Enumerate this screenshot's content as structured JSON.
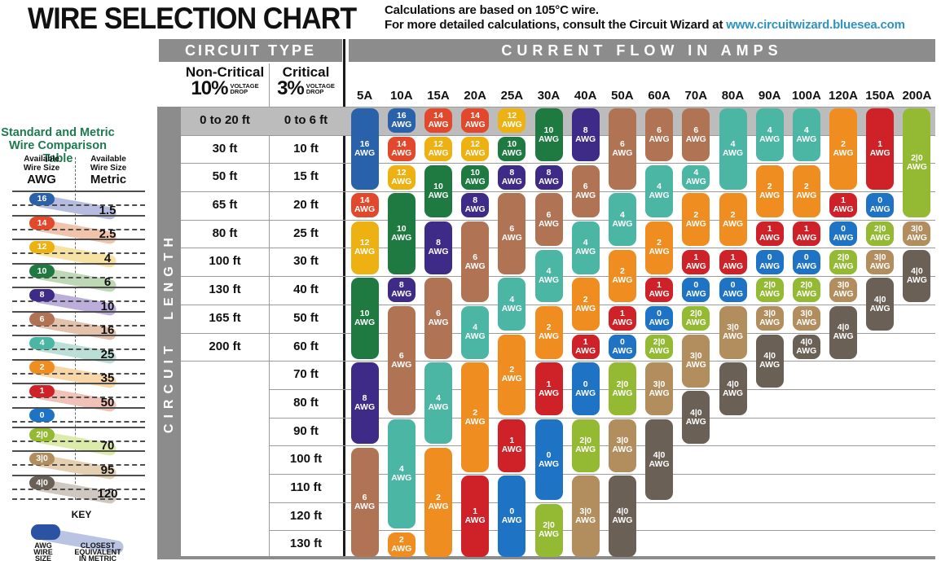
{
  "header": {
    "title": "WIRE SELECTION CHART",
    "note_line1": "Calculations are based on 105°C wire.",
    "note_line2": "For more detailed calculations, consult the Circuit Wizard at ",
    "note_link": "www.circuitwizard.bluesea.com",
    "link_color": "#2e93c4"
  },
  "table_header": {
    "circuit_type": "CIRCUIT TYPE",
    "current_flow": "CURRENT FLOW IN AMPS",
    "circuit_length": "CIRCUIT LENGTH",
    "non_critical": {
      "name": "Non-Critical",
      "pct": "10%",
      "drop1": "VOLTAGE",
      "drop2": "DROP"
    },
    "critical": {
      "name": "Critical",
      "pct": "3%",
      "drop1": "VOLTAGE",
      "drop2": "DROP"
    }
  },
  "sidebar": {
    "title1": "Standard and Metric",
    "title2": "Wire Comparison Table",
    "title_color": "#1c7a4f",
    "left_header1": "Available",
    "left_header2": "Wire Size",
    "left_unit": "AWG",
    "right_header1": "Available",
    "right_header2": "Wire Size",
    "right_unit": "Metric",
    "items": [
      {
        "awg": "16",
        "metric": "1.5"
      },
      {
        "awg": "14",
        "metric": "2.5"
      },
      {
        "awg": "12",
        "metric": "4"
      },
      {
        "awg": "10",
        "metric": "6"
      },
      {
        "awg": "8",
        "metric": "10"
      },
      {
        "awg": "6",
        "metric": "16"
      },
      {
        "awg": "4",
        "metric": "25"
      },
      {
        "awg": "2",
        "metric": "35"
      },
      {
        "awg": "1",
        "metric": "50"
      },
      {
        "awg": "0",
        "metric": ""
      },
      {
        "awg": "2|0",
        "metric": "70"
      },
      {
        "awg": "3|0",
        "metric": "95"
      },
      {
        "awg": "4|0",
        "metric": "120"
      }
    ],
    "key": {
      "label": "KEY",
      "pill_color": "#2b52a3",
      "swoosh_color": "#b9c3e2",
      "left1": "AWG",
      "left2": "WIRE",
      "left3": "SIZE",
      "right1": "CLOSEST",
      "right2": "EQUIVALENT",
      "right3": "IN METRIC"
    }
  },
  "wire_colors": {
    "16": "#2a61ab",
    "14": "#e2492c",
    "12": "#edb111",
    "10": "#1e7a41",
    "8": "#3e2b87",
    "6": "#b07354",
    "4": "#4cb6a5",
    "2": "#ef8d20",
    "1": "#cf2128",
    "0": "#1e73c4",
    "2|0": "#94ba33",
    "3|0": "#b28d5e",
    "4|0": "#6b6056"
  },
  "wire_light_colors": {
    "16": "#b6bcdf",
    "14": "#f2c3ab",
    "12": "#f6e3a3",
    "10": "#bed7b5",
    "8": "#bcaeda",
    "6": "#e3c1aa",
    "4": "#bbdfd7",
    "2": "#f7d7a8",
    "1": "#f0c1b6",
    "2|0": "#dcebaa",
    "3|0": "#e4cfb1",
    "4|0": "#cfc8c1"
  },
  "chart_data": {
    "type": "table",
    "title": "WIRE SELECTION CHART",
    "x_axis": "CURRENT FLOW IN AMPS",
    "y_axis": "CIRCUIT LENGTH",
    "rows": [
      {
        "non_critical": "0 to 20 ft",
        "critical": "0 to 6 ft",
        "highlight": true
      },
      {
        "non_critical": "30 ft",
        "critical": "10 ft"
      },
      {
        "non_critical": "50 ft",
        "critical": "15 ft"
      },
      {
        "non_critical": "65 ft",
        "critical": "20 ft"
      },
      {
        "non_critical": "80 ft",
        "critical": "25 ft"
      },
      {
        "non_critical": "100 ft",
        "critical": "30 ft"
      },
      {
        "non_critical": "130 ft",
        "critical": "40 ft"
      },
      {
        "non_critical": "165 ft",
        "critical": "50 ft"
      },
      {
        "non_critical": "200 ft",
        "critical": "60 ft"
      },
      {
        "non_critical": "",
        "critical": "70 ft"
      },
      {
        "non_critical": "",
        "critical": "80 ft"
      },
      {
        "non_critical": "",
        "critical": "90 ft"
      },
      {
        "non_critical": "",
        "critical": "100 ft"
      },
      {
        "non_critical": "",
        "critical": "110 ft"
      },
      {
        "non_critical": "",
        "critical": "120 ft"
      },
      {
        "non_critical": "",
        "critical": "130 ft"
      }
    ],
    "amp_columns": [
      {
        "label": "5A",
        "bars": [
          {
            "awg": "16",
            "start": 1,
            "end": 3
          },
          {
            "awg": "14",
            "start": 4,
            "end": 4
          },
          {
            "awg": "12",
            "start": 5,
            "end": 6
          },
          {
            "awg": "10",
            "start": 7,
            "end": 9
          },
          {
            "awg": "8",
            "start": 10,
            "end": 12
          },
          {
            "awg": "6",
            "start": 13,
            "end": 16
          }
        ]
      },
      {
        "label": "10A",
        "bars": [
          {
            "awg": "16",
            "start": 1,
            "end": 1
          },
          {
            "awg": "14",
            "start": 2,
            "end": 2
          },
          {
            "awg": "12",
            "start": 3,
            "end": 3
          },
          {
            "awg": "10",
            "start": 4,
            "end": 6
          },
          {
            "awg": "8",
            "start": 7,
            "end": 7
          },
          {
            "awg": "6",
            "start": 8,
            "end": 11
          },
          {
            "awg": "4",
            "start": 12,
            "end": 15
          },
          {
            "awg": "2",
            "start": 16,
            "end": 16
          }
        ]
      },
      {
        "label": "15A",
        "bars": [
          {
            "awg": "14",
            "start": 1,
            "end": 1
          },
          {
            "awg": "12",
            "start": 2,
            "end": 2
          },
          {
            "awg": "10",
            "start": 3,
            "end": 4
          },
          {
            "awg": "8",
            "start": 5,
            "end": 6
          },
          {
            "awg": "6",
            "start": 7,
            "end": 9
          },
          {
            "awg": "4",
            "start": 10,
            "end": 12
          },
          {
            "awg": "2",
            "start": 13,
            "end": 16
          }
        ]
      },
      {
        "label": "20A",
        "bars": [
          {
            "awg": "14",
            "start": 1,
            "end": 1
          },
          {
            "awg": "12",
            "start": 2,
            "end": 2
          },
          {
            "awg": "10",
            "start": 3,
            "end": 3
          },
          {
            "awg": "8",
            "start": 4,
            "end": 4
          },
          {
            "awg": "6",
            "start": 5,
            "end": 7
          },
          {
            "awg": "4",
            "start": 8,
            "end": 9
          },
          {
            "awg": "2",
            "start": 10,
            "end": 13
          },
          {
            "awg": "1",
            "start": 14,
            "end": 16
          }
        ]
      },
      {
        "label": "25A",
        "bars": [
          {
            "awg": "12",
            "start": 1,
            "end": 1
          },
          {
            "awg": "10",
            "start": 2,
            "end": 2
          },
          {
            "awg": "8",
            "start": 3,
            "end": 3
          },
          {
            "awg": "6",
            "start": 4,
            "end": 6
          },
          {
            "awg": "4",
            "start": 7,
            "end": 8
          },
          {
            "awg": "2",
            "start": 9,
            "end": 11
          },
          {
            "awg": "1",
            "start": 12,
            "end": 13
          },
          {
            "awg": "0",
            "start": 14,
            "end": 16
          }
        ]
      },
      {
        "label": "30A",
        "bars": [
          {
            "awg": "10",
            "start": 1,
            "end": 2
          },
          {
            "awg": "8",
            "start": 3,
            "end": 3
          },
          {
            "awg": "6",
            "start": 4,
            "end": 5
          },
          {
            "awg": "4",
            "start": 6,
            "end": 7
          },
          {
            "awg": "2",
            "start": 8,
            "end": 9
          },
          {
            "awg": "1",
            "start": 10,
            "end": 11
          },
          {
            "awg": "0",
            "start": 12,
            "end": 14
          },
          {
            "awg": "2|0",
            "start": 15,
            "end": 16
          }
        ]
      },
      {
        "label": "40A",
        "bars": [
          {
            "awg": "8",
            "start": 1,
            "end": 2
          },
          {
            "awg": "6",
            "start": 3,
            "end": 4
          },
          {
            "awg": "4",
            "start": 5,
            "end": 6
          },
          {
            "awg": "2",
            "start": 7,
            "end": 8
          },
          {
            "awg": "1",
            "start": 9,
            "end": 9
          },
          {
            "awg": "0",
            "start": 10,
            "end": 11
          },
          {
            "awg": "2|0",
            "start": 12,
            "end": 13
          },
          {
            "awg": "3|0",
            "start": 14,
            "end": 16
          }
        ]
      },
      {
        "label": "50A",
        "bars": [
          {
            "awg": "6",
            "start": 1,
            "end": 3
          },
          {
            "awg": "4",
            "start": 4,
            "end": 5
          },
          {
            "awg": "2",
            "start": 6,
            "end": 7
          },
          {
            "awg": "1",
            "start": 8,
            "end": 8
          },
          {
            "awg": "0",
            "start": 9,
            "end": 9
          },
          {
            "awg": "2|0",
            "start": 10,
            "end": 11
          },
          {
            "awg": "3|0",
            "start": 12,
            "end": 13
          },
          {
            "awg": "4|0",
            "start": 14,
            "end": 16
          }
        ]
      },
      {
        "label": "60A",
        "bars": [
          {
            "awg": "6",
            "start": 1,
            "end": 2
          },
          {
            "awg": "4",
            "start": 3,
            "end": 4
          },
          {
            "awg": "2",
            "start": 5,
            "end": 6
          },
          {
            "awg": "1",
            "start": 7,
            "end": 7
          },
          {
            "awg": "0",
            "start": 8,
            "end": 8
          },
          {
            "awg": "2|0",
            "start": 9,
            "end": 9
          },
          {
            "awg": "3|0",
            "start": 10,
            "end": 11
          },
          {
            "awg": "4|0",
            "start": 12,
            "end": 14
          }
        ]
      },
      {
        "label": "70A",
        "bars": [
          {
            "awg": "6",
            "start": 1,
            "end": 2
          },
          {
            "awg": "4",
            "start": 3,
            "end": 3
          },
          {
            "awg": "2",
            "start": 4,
            "end": 5
          },
          {
            "awg": "1",
            "start": 6,
            "end": 6
          },
          {
            "awg": "0",
            "start": 7,
            "end": 7
          },
          {
            "awg": "2|0",
            "start": 8,
            "end": 8
          },
          {
            "awg": "3|0",
            "start": 9,
            "end": 10
          },
          {
            "awg": "4|0",
            "start": 11,
            "end": 12
          }
        ]
      },
      {
        "label": "80A",
        "bars": [
          {
            "awg": "4",
            "start": 1,
            "end": 3
          },
          {
            "awg": "2",
            "start": 4,
            "end": 5
          },
          {
            "awg": "1",
            "start": 6,
            "end": 6
          },
          {
            "awg": "0",
            "start": 7,
            "end": 7
          },
          {
            "awg": "3|0",
            "start": 8,
            "end": 9
          },
          {
            "awg": "4|0",
            "start": 10,
            "end": 11
          }
        ]
      },
      {
        "label": "90A",
        "bars": [
          {
            "awg": "4",
            "start": 1,
            "end": 2
          },
          {
            "awg": "2",
            "start": 3,
            "end": 4
          },
          {
            "awg": "1",
            "start": 5,
            "end": 5
          },
          {
            "awg": "0",
            "start": 6,
            "end": 6
          },
          {
            "awg": "2|0",
            "start": 7,
            "end": 7
          },
          {
            "awg": "3|0",
            "start": 8,
            "end": 8
          },
          {
            "awg": "4|0",
            "start": 9,
            "end": 10
          }
        ]
      },
      {
        "label": "100A",
        "bars": [
          {
            "awg": "4",
            "start": 1,
            "end": 2
          },
          {
            "awg": "2",
            "start": 3,
            "end": 4
          },
          {
            "awg": "1",
            "start": 5,
            "end": 5
          },
          {
            "awg": "0",
            "start": 6,
            "end": 6
          },
          {
            "awg": "2|0",
            "start": 7,
            "end": 7
          },
          {
            "awg": "3|0",
            "start": 8,
            "end": 8
          },
          {
            "awg": "4|0",
            "start": 9,
            "end": 9
          }
        ]
      },
      {
        "label": "120A",
        "bars": [
          {
            "awg": "2",
            "start": 1,
            "end": 3
          },
          {
            "awg": "1",
            "start": 4,
            "end": 4
          },
          {
            "awg": "0",
            "start": 5,
            "end": 5
          },
          {
            "awg": "2|0",
            "start": 6,
            "end": 6
          },
          {
            "awg": "3|0",
            "start": 7,
            "end": 7
          },
          {
            "awg": "4|0",
            "start": 8,
            "end": 9
          }
        ]
      },
      {
        "label": "150A",
        "bars": [
          {
            "awg": "1",
            "start": 1,
            "end": 3
          },
          {
            "awg": "0",
            "start": 4,
            "end": 4
          },
          {
            "awg": "2|0",
            "start": 5,
            "end": 5
          },
          {
            "awg": "3|0",
            "start": 6,
            "end": 6
          },
          {
            "awg": "4|0",
            "start": 7,
            "end": 8
          }
        ]
      },
      {
        "label": "200A",
        "bars": [
          {
            "awg": "2|0",
            "start": 1,
            "end": 4
          },
          {
            "awg": "3|0",
            "start": 5,
            "end": 5
          },
          {
            "awg": "4|0",
            "start": 6,
            "end": 7
          }
        ]
      }
    ]
  }
}
